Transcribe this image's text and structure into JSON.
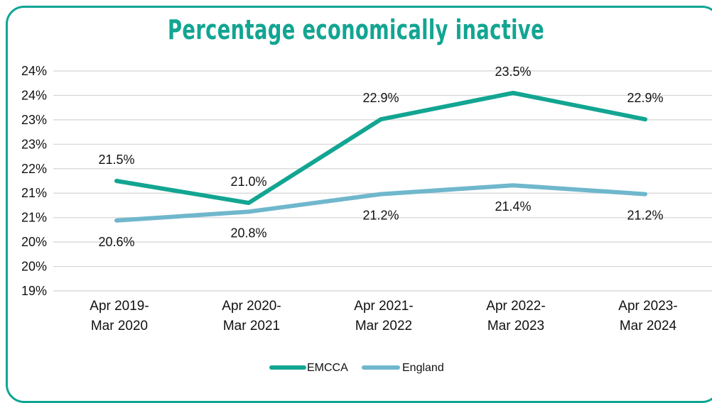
{
  "chart_data": {
    "type": "line",
    "title": "Percentage economically inactive",
    "xlabel": "",
    "ylabel": "",
    "categories": [
      [
        "Apr 2019-",
        "Mar 2020"
      ],
      [
        "Apr 2020-",
        "Mar 2021"
      ],
      [
        "Apr 2021-",
        "Mar 2022"
      ],
      [
        "Apr 2022-",
        "Mar 2023"
      ],
      [
        "Apr 2023-",
        "Mar 2024"
      ]
    ],
    "ytick_labels": [
      "19%",
      "20%",
      "20%",
      "21%",
      "21%",
      "22%",
      "23%",
      "23%",
      "24%",
      "24%"
    ],
    "ylim": [
      19.0,
      24.0
    ],
    "grid": true,
    "legend_position": "bottom",
    "series": [
      {
        "name": "EMCCA",
        "color": "#12a592",
        "values": [
          21.5,
          21.0,
          22.9,
          23.5,
          22.9
        ],
        "labels": [
          "21.5%",
          "21.0%",
          "22.9%",
          "23.5%",
          "22.9%"
        ]
      },
      {
        "name": "England",
        "color": "#6fb7cc",
        "values": [
          20.6,
          20.8,
          21.2,
          21.4,
          21.2
        ],
        "labels": [
          "20.6%",
          "20.8%",
          "21.2%",
          "21.4%",
          "21.2%"
        ]
      }
    ]
  }
}
